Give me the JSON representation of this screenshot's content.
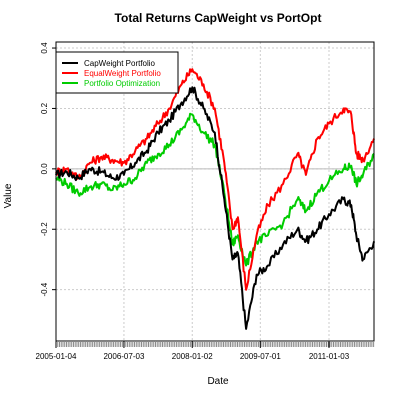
{
  "chart_data": {
    "type": "line",
    "title": "Total Returns CapWeight vs PortOpt",
    "xlabel": "Date",
    "ylabel": "Value",
    "x_start": "2005-01-04",
    "x_end": "2011-12-30",
    "xlim": [
      "2005-01-04",
      "2011-12-30"
    ],
    "ylim": [
      -0.57,
      0.42
    ],
    "x_ticks": [
      "2005-01-04",
      "2006-07-03",
      "2008-01-02",
      "2009-07-01",
      "2011-01-03"
    ],
    "y_ticks": [
      -0.4,
      -0.2,
      0.0,
      0.2,
      0.4
    ],
    "y_tick_labels": [
      "-0.4",
      "-0.2",
      "0.0",
      "0.2",
      "0.4"
    ],
    "zero_line": 0,
    "grid": true,
    "legend_position": "top-left",
    "series": [
      {
        "name": "CapWeight Portfolio",
        "color": "#000000",
        "x": [
          "2005-01-04",
          "2005-04-01",
          "2005-07-01",
          "2005-10-03",
          "2006-01-03",
          "2006-04-03",
          "2006-07-03",
          "2006-10-02",
          "2007-01-03",
          "2007-04-02",
          "2007-07-02",
          "2007-10-09",
          "2008-01-02",
          "2008-04-01",
          "2008-07-01",
          "2008-09-15",
          "2008-11-20",
          "2009-01-02",
          "2009-03-09",
          "2009-06-01",
          "2009-09-01",
          "2009-12-31",
          "2010-04-26",
          "2010-07-02",
          "2010-10-01",
          "2011-01-03",
          "2011-04-29",
          "2011-07-01",
          "2011-08-10",
          "2011-10-03",
          "2011-12-30"
        ],
        "values": [
          -0.02,
          -0.01,
          -0.03,
          0.0,
          -0.01,
          -0.03,
          -0.02,
          0.02,
          0.06,
          0.12,
          0.16,
          0.22,
          0.27,
          0.2,
          0.12,
          -0.1,
          -0.3,
          -0.28,
          -0.53,
          -0.35,
          -0.32,
          -0.25,
          -0.2,
          -0.24,
          -0.2,
          -0.15,
          -0.1,
          -0.12,
          -0.22,
          -0.3,
          -0.24
        ]
      },
      {
        "name": "EqualWeight Portfolio",
        "color": "#ff0000",
        "x": [
          "2005-01-04",
          "2005-04-01",
          "2005-07-01",
          "2005-10-03",
          "2006-01-03",
          "2006-04-03",
          "2006-07-03",
          "2006-10-02",
          "2007-01-03",
          "2007-04-02",
          "2007-07-02",
          "2007-10-09",
          "2008-01-02",
          "2008-04-01",
          "2008-07-01",
          "2008-09-15",
          "2008-11-20",
          "2009-01-02",
          "2009-03-09",
          "2009-06-01",
          "2009-09-01",
          "2009-12-31",
          "2010-04-26",
          "2010-07-02",
          "2010-10-01",
          "2011-01-03",
          "2011-04-29",
          "2011-07-01",
          "2011-08-10",
          "2011-10-03",
          "2011-12-30"
        ],
        "values": [
          -0.01,
          0.0,
          -0.03,
          0.02,
          0.04,
          0.03,
          0.02,
          0.06,
          0.1,
          0.15,
          0.2,
          0.28,
          0.33,
          0.28,
          0.2,
          0.02,
          -0.2,
          -0.16,
          -0.4,
          -0.22,
          -0.12,
          -0.05,
          0.05,
          -0.02,
          0.1,
          0.15,
          0.2,
          0.18,
          0.05,
          0.03,
          0.1
        ]
      },
      {
        "name": "Portfolio Optimization",
        "color": "#00cc00",
        "x": [
          "2005-01-04",
          "2005-04-01",
          "2005-07-01",
          "2005-10-03",
          "2006-01-03",
          "2006-04-03",
          "2006-07-03",
          "2006-10-02",
          "2007-01-03",
          "2007-04-02",
          "2007-07-02",
          "2007-10-09",
          "2008-01-02",
          "2008-04-01",
          "2008-07-01",
          "2008-09-15",
          "2008-11-20",
          "2009-01-02",
          "2009-03-09",
          "2009-06-01",
          "2009-09-01",
          "2009-12-31",
          "2010-04-26",
          "2010-07-02",
          "2010-10-01",
          "2011-01-03",
          "2011-04-29",
          "2011-07-01",
          "2011-08-10",
          "2011-10-03",
          "2011-12-30"
        ],
        "values": [
          -0.03,
          -0.05,
          -0.08,
          -0.06,
          -0.05,
          -0.07,
          -0.05,
          -0.03,
          0.02,
          0.05,
          0.08,
          0.13,
          0.18,
          0.12,
          0.08,
          -0.08,
          -0.25,
          -0.22,
          -0.32,
          -0.24,
          -0.22,
          -0.18,
          -0.1,
          -0.14,
          -0.08,
          -0.04,
          0.0,
          0.01,
          -0.05,
          -0.02,
          0.05
        ]
      }
    ]
  }
}
